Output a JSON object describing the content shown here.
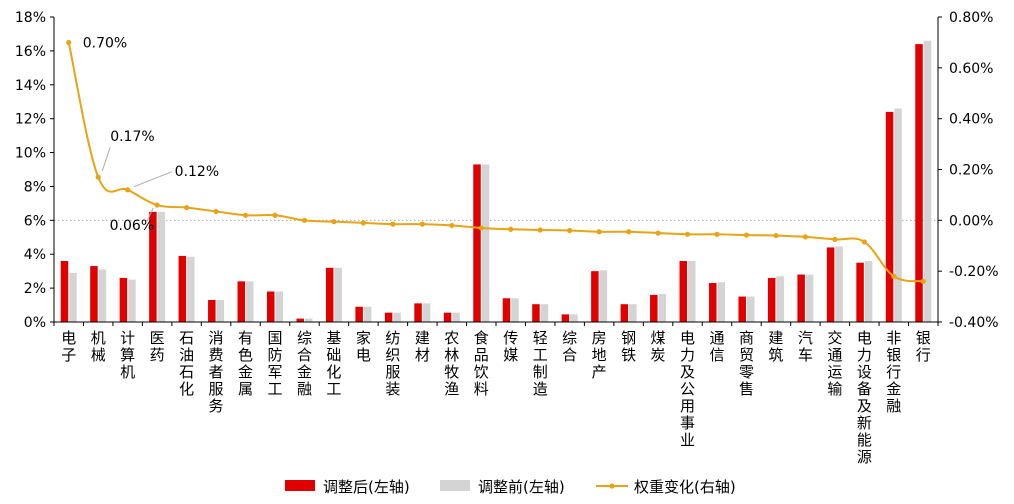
{
  "chart_data": {
    "type": "bar",
    "categories": [
      "电子",
      "机械",
      "计算机",
      "医药",
      "石油石化",
      "消费者服务",
      "有色金属",
      "国防军工",
      "综合金融",
      "基础化工",
      "家电",
      "纺织服装",
      "建材",
      "农林牧渔",
      "食品饮料",
      "传媒",
      "轻工制造",
      "综合",
      "房地产",
      "钢铁",
      "煤炭",
      "电力及公用事业",
      "通信",
      "商贸零售",
      "建筑",
      "汽车",
      "交通运输",
      "电力设备及新能源",
      "非银行金融",
      "银行"
    ],
    "series": [
      {
        "name": "调整后(左轴)",
        "type": "bar",
        "axis": "left",
        "color": "#e00000",
        "values": [
          3.6,
          3.3,
          2.6,
          6.5,
          3.9,
          1.3,
          2.4,
          1.8,
          0.2,
          3.2,
          0.9,
          0.55,
          1.1,
          0.55,
          9.3,
          1.4,
          1.05,
          0.45,
          3.0,
          1.05,
          1.6,
          3.6,
          2.3,
          1.5,
          2.6,
          2.8,
          4.4,
          3.5,
          12.4,
          16.4
        ]
      },
      {
        "name": "调整前(左轴)",
        "type": "bar",
        "axis": "left",
        "color": "#d4d4d4",
        "values": [
          2.9,
          3.1,
          2.5,
          6.5,
          3.85,
          1.3,
          2.4,
          1.8,
          0.2,
          3.2,
          0.9,
          0.55,
          1.1,
          0.55,
          9.3,
          1.4,
          1.05,
          0.45,
          3.05,
          1.05,
          1.65,
          3.6,
          2.35,
          1.5,
          2.7,
          2.8,
          4.45,
          3.6,
          12.6,
          16.6
        ]
      },
      {
        "name": "权重变化(右轴)",
        "type": "line",
        "axis": "right",
        "color": "#e8a317",
        "values": [
          0.7,
          0.17,
          0.12,
          0.06,
          0.05,
          0.035,
          0.02,
          0.02,
          0.0,
          -0.005,
          -0.01,
          -0.015,
          -0.015,
          -0.02,
          -0.03,
          -0.035,
          -0.038,
          -0.04,
          -0.045,
          -0.045,
          -0.05,
          -0.055,
          -0.055,
          -0.058,
          -0.06,
          -0.065,
          -0.075,
          -0.085,
          -0.22,
          -0.24
        ]
      }
    ],
    "left_axis": {
      "min": 0,
      "max": 18,
      "step": 2,
      "ticks": [
        "0%",
        "2%",
        "4%",
        "6%",
        "8%",
        "10%",
        "12%",
        "14%",
        "16%",
        "18%"
      ]
    },
    "right_axis": {
      "min": -0.4,
      "max": 0.8,
      "step": 0.2,
      "ticks": [
        "-0.40%",
        "-0.20%",
        "0.00%",
        "0.20%",
        "0.40%",
        "0.60%",
        "0.80%"
      ]
    },
    "annotations": [
      {
        "text": "0.70%",
        "index": 0
      },
      {
        "text": "0.17%",
        "index": 1
      },
      {
        "text": "0.12%",
        "index": 2
      },
      {
        "text": "0.06%",
        "index": 3
      }
    ],
    "reference_line": {
      "axis": "right",
      "value": 0,
      "style": "dotted"
    },
    "legend": {
      "position": "bottom",
      "entries": [
        "调整后(左轴)",
        "调整前(左轴)",
        "权重变化(右轴)"
      ]
    },
    "grid": false
  }
}
